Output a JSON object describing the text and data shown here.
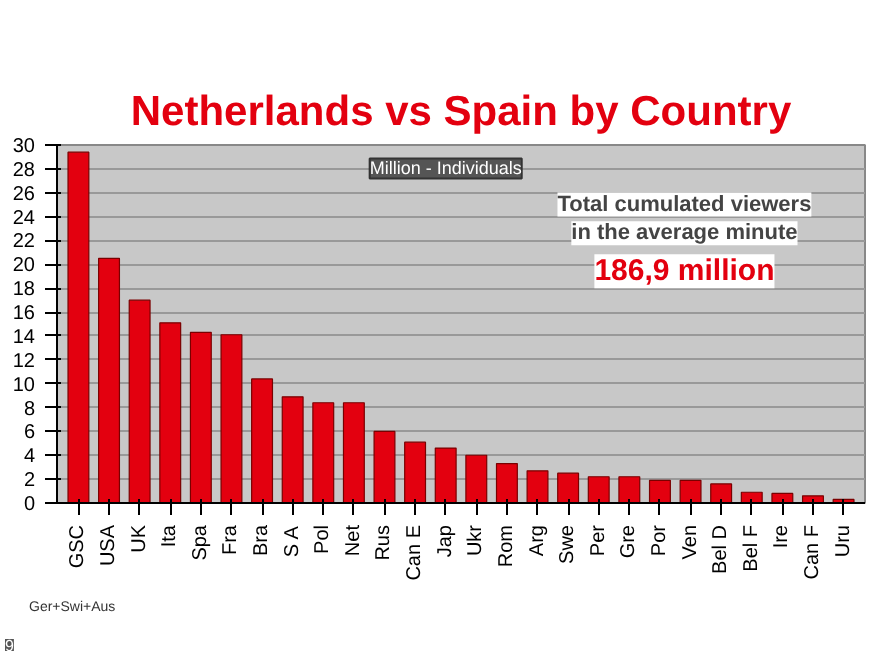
{
  "chart_data": {
    "type": "bar",
    "title": "Netherlands vs Spain by Country",
    "categories": [
      "GSC",
      "USA",
      "UK",
      "Ita",
      "Spa",
      "Fra",
      "Bra",
      "S A",
      "Pol",
      "Net",
      "Rus",
      "Can E",
      "Jap",
      "Ukr",
      "Rom",
      "Arg",
      "Swe",
      "Per",
      "Gre",
      "Por",
      "Ven",
      "Bel D",
      "Bel F",
      "Ire",
      "Can F",
      "Uru"
    ],
    "values": [
      29.4,
      20.5,
      17.0,
      15.1,
      14.3,
      14.1,
      10.4,
      8.9,
      8.4,
      8.4,
      6.0,
      5.1,
      4.6,
      4.0,
      3.3,
      2.7,
      2.5,
      2.2,
      2.2,
      1.9,
      1.9,
      1.6,
      0.9,
      0.8,
      0.6,
      0.3
    ],
    "color": "#e3000f",
    "ylim": [
      0,
      30
    ],
    "yticks": [
      0,
      2,
      4,
      6,
      8,
      10,
      12,
      14,
      16,
      18,
      20,
      22,
      24,
      26,
      28,
      30
    ],
    "grid": "y",
    "annotations": [
      "Million - Individuals",
      "Total cumulated viewers",
      "in the average minute",
      "186,9 million",
      "Ger+Swi+Aus",
      "9"
    ]
  }
}
